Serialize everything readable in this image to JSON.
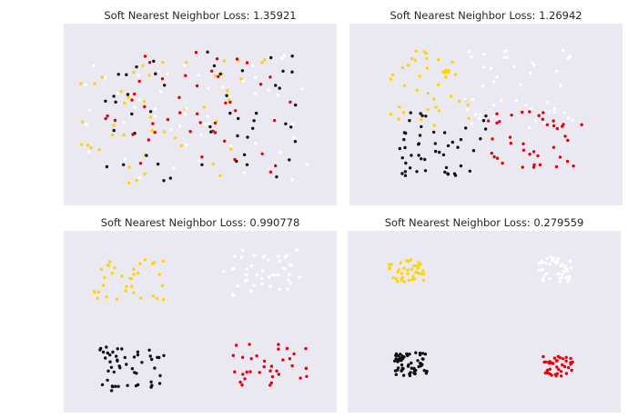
{
  "panels": [
    {
      "title": "Soft Nearest Neighbor Loss: 1.35921"
    },
    {
      "title": "Soft Nearest Neighbor Loss: 1.26942"
    },
    {
      "title": "Soft Nearest Neighbor Loss: 0.990778"
    },
    {
      "title": "Soft Nearest Neighbor Loss: 0.279559"
    }
  ],
  "colors": {
    "background": "#eae8f0",
    "class_yellow": "#ffd400",
    "class_white": "#ffffff",
    "class_black": "#111111",
    "class_red": "#e8000b"
  },
  "chart_data": [
    {
      "type": "scatter",
      "title": "Soft Nearest Neighbor Loss: 1.35921",
      "grid": false,
      "xlim": [
        0,
        100
      ],
      "ylim": [
        0,
        100
      ],
      "series": [
        {
          "color": "#ffd400",
          "spread": [
            4,
            75,
            18,
            88
          ],
          "count": 45,
          "seed": 11
        },
        {
          "color": "#ffffff",
          "spread": [
            8,
            90,
            15,
            88
          ],
          "count": 50,
          "seed": 12
        },
        {
          "color": "#111111",
          "spread": [
            15,
            85,
            15,
            88
          ],
          "count": 50,
          "seed": 13
        },
        {
          "color": "#e8000b",
          "spread": [
            15,
            88,
            15,
            88
          ],
          "count": 45,
          "seed": 14
        }
      ]
    },
    {
      "type": "scatter",
      "title": "Soft Nearest Neighbor Loss: 1.26942",
      "grid": false,
      "xlim": [
        0,
        100
      ],
      "ylim": [
        0,
        100
      ],
      "series": [
        {
          "color": "#ffd400",
          "spread": [
            14,
            45,
            15,
            58
          ],
          "count": 40,
          "seed": 21
        },
        {
          "color": "#ffffff",
          "spread": [
            42,
            82,
            12,
            58
          ],
          "count": 50,
          "seed": 22
        },
        {
          "color": "#111111",
          "spread": [
            18,
            50,
            48,
            85
          ],
          "count": 50,
          "seed": 23
        },
        {
          "color": "#e8000b",
          "spread": [
            50,
            86,
            48,
            80
          ],
          "count": 40,
          "seed": 24
        }
      ]
    },
    {
      "type": "scatter",
      "title": "Soft Nearest Neighbor Loss: 0.990778",
      "grid": false,
      "xlim": [
        0,
        100
      ],
      "ylim": [
        0,
        100
      ],
      "series": [
        {
          "color": "#ffd400",
          "spread": [
            10,
            38,
            15,
            38
          ],
          "count": 35,
          "seed": 31
        },
        {
          "color": "#ffffff",
          "spread": [
            58,
            87,
            10,
            36
          ],
          "count": 45,
          "seed": 32
        },
        {
          "color": "#111111",
          "spread": [
            13,
            38,
            62,
            88
          ],
          "count": 50,
          "seed": 33
        },
        {
          "color": "#e8000b",
          "spread": [
            62,
            89,
            62,
            85
          ],
          "count": 35,
          "seed": 34
        }
      ]
    },
    {
      "type": "scatter",
      "title": "Soft Nearest Neighbor Loss: 0.279559",
      "grid": false,
      "xlim": [
        0,
        100
      ],
      "ylim": [
        0,
        100
      ],
      "series": [
        {
          "color": "#ffd400",
          "spread": [
            15,
            28,
            16,
            28
          ],
          "count": 40,
          "seed": 41
        },
        {
          "color": "#ffffff",
          "spread": [
            70,
            82,
            14,
            28
          ],
          "count": 45,
          "seed": 42
        },
        {
          "color": "#111111",
          "spread": [
            17,
            29,
            67,
            80
          ],
          "count": 60,
          "seed": 43
        },
        {
          "color": "#e8000b",
          "spread": [
            71,
            83,
            69,
            80
          ],
          "count": 40,
          "seed": 44
        }
      ]
    }
  ]
}
